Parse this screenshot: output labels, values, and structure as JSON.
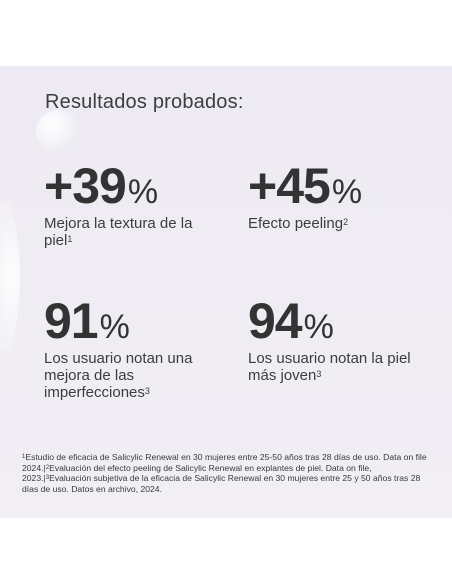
{
  "heading": "Resultados probados:",
  "stats": [
    {
      "prefix": "+",
      "value": "39",
      "unit": "%",
      "desc": "Mejora la textura de la piel",
      "ref": "1"
    },
    {
      "prefix": "+",
      "value": "45",
      "unit": "%",
      "desc": "Efecto peeling",
      "ref": "2"
    },
    {
      "prefix": "",
      "value": "91",
      "unit": "%",
      "desc": "Los usuario notan una  mejora de las imperfecciones",
      "ref": "3"
    },
    {
      "prefix": "",
      "value": "94",
      "unit": "%",
      "desc": "Los usuario notan la piel más joven",
      "ref": "3"
    }
  ],
  "footnote": {
    "ref1": "1",
    "text1": "Estudio de eficacia de Salicylic Renewal en 30 mujeres entre 25-50 años tras 28 días de uso. Data on file 2024.|",
    "ref2": "2",
    "text2": "Evaluación del efecto peeling de Salicylic Renewal en explantes de piel. Data on file, 2023.|",
    "ref3": "3",
    "text3": "Evaluación subjetiva de la eficacia de Salicylic Renewal en 30 mujeres entre 25 y 50 años tras 28 días de uso. Datos en archivo, 2024."
  }
}
